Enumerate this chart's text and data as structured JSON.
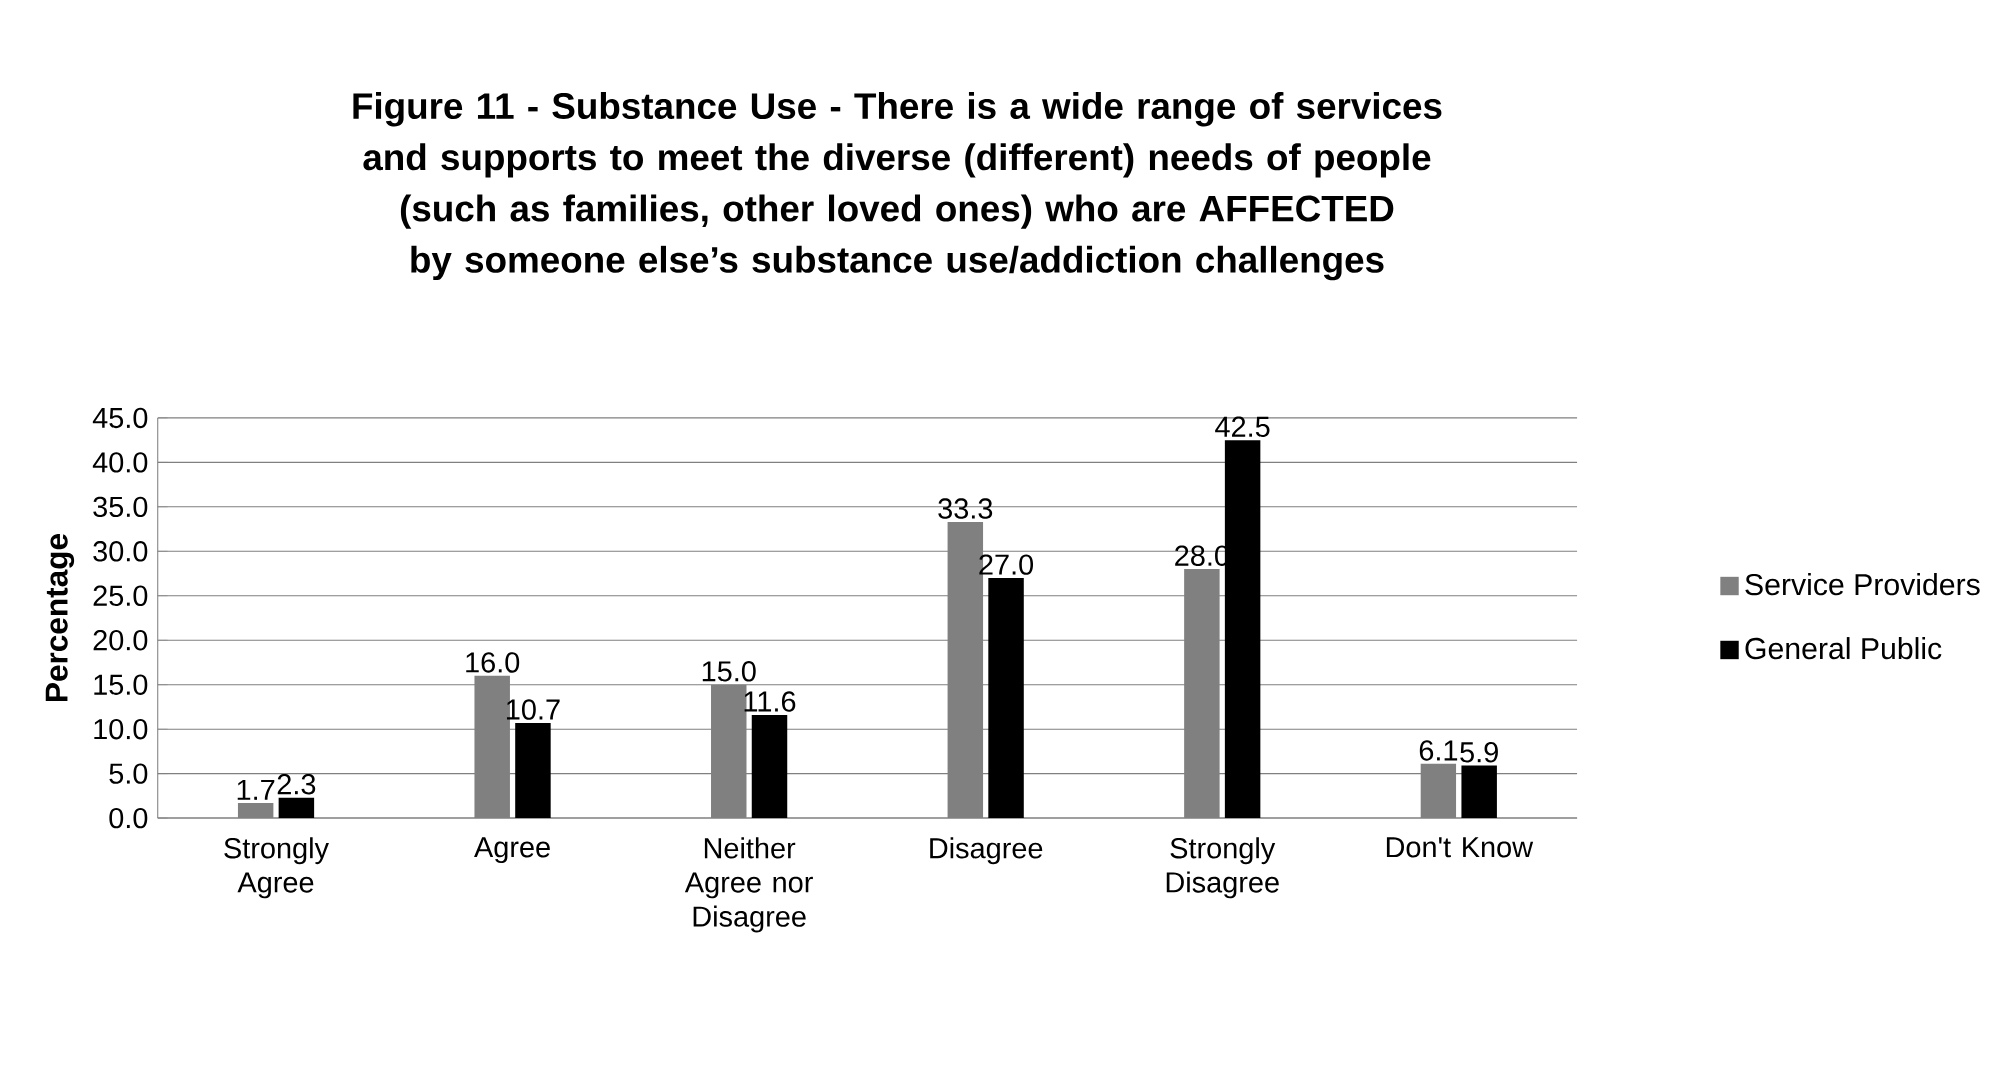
{
  "chart_data": {
    "type": "bar",
    "title": "Figure 11 - Substance Use - There is a wide range of services and supports to meet the diverse (different) needs of people (such as families, other loved ones) who are AFFECTED by someone else’s substance use/addiction challenges",
    "ylabel": "Percentage",
    "categories": [
      "Strongly Agree",
      "Agree",
      "Neither Agree nor Disagree",
      "Disagree",
      "Strongly Disagree",
      "Don't Know"
    ],
    "series": [
      {
        "name": "Service Providers",
        "color": "#808080",
        "values": [
          1.7,
          16.0,
          15.0,
          33.3,
          28.0,
          6.1
        ],
        "value_labels": [
          "1.7",
          "16.0",
          "15.0",
          "33.3",
          "28.0",
          "6.1"
        ]
      },
      {
        "name": "General Public",
        "color": "#000000",
        "values": [
          2.3,
          10.7,
          11.6,
          27.0,
          42.5,
          5.9
        ],
        "value_labels": [
          "2.3",
          "10.7",
          "11.6",
          "27.0",
          "42.5",
          "5.9"
        ]
      }
    ],
    "ylim": [
      0,
      45
    ],
    "yticks": [
      {
        "value": 0,
        "label": "0.0"
      },
      {
        "value": 5,
        "label": "5.0"
      },
      {
        "value": 10,
        "label": "10.0"
      },
      {
        "value": 15,
        "label": "15.0"
      },
      {
        "value": 20,
        "label": "20.0"
      },
      {
        "value": 25,
        "label": "25.0"
      },
      {
        "value": 30,
        "label": "30.0"
      },
      {
        "value": 35,
        "label": "35.0"
      },
      {
        "value": 40,
        "label": "40.0"
      },
      {
        "value": 45,
        "label": "45.0"
      }
    ],
    "grid": "y",
    "legend": "right"
  }
}
